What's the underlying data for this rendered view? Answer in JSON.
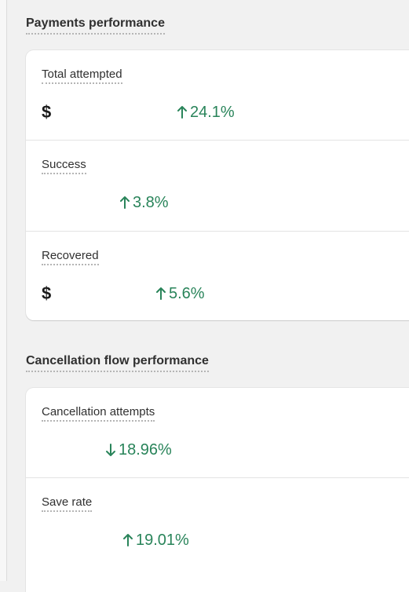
{
  "payments": {
    "title": "Payments performance",
    "metrics": [
      {
        "label": "Total attempted",
        "currency": "$",
        "change": "24.1%",
        "direction": "up"
      },
      {
        "label": "Success",
        "currency": "",
        "change": "3.8%",
        "direction": "up"
      },
      {
        "label": "Recovered",
        "currency": "$",
        "change": "5.6%",
        "direction": "up"
      }
    ]
  },
  "cancellation": {
    "title": "Cancellation flow performance",
    "metrics": [
      {
        "label": "Cancellation attempts",
        "change": "18.96%",
        "direction": "down"
      },
      {
        "label": "Save rate",
        "change": "19.01%",
        "direction": "up"
      }
    ]
  },
  "colors": {
    "positive": "#29845a",
    "background": "#f1f1f1",
    "card": "#ffffff"
  }
}
